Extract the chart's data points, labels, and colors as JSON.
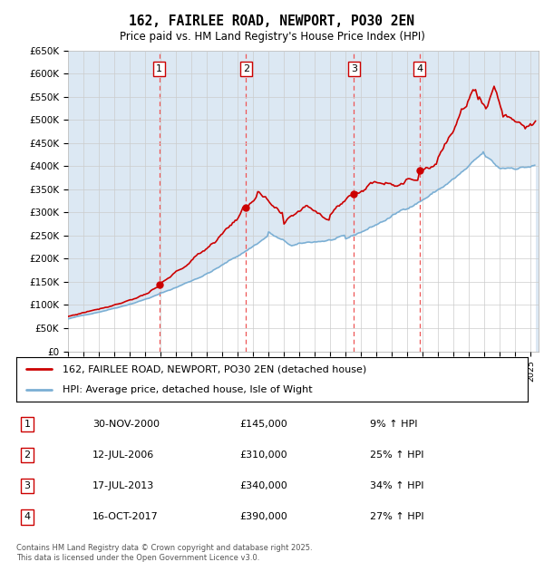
{
  "title": "162, FAIRLEE ROAD, NEWPORT, PO30 2EN",
  "subtitle": "Price paid vs. HM Land Registry's House Price Index (HPI)",
  "ylabel_ticks": [
    "£0",
    "£50K",
    "£100K",
    "£150K",
    "£200K",
    "£250K",
    "£300K",
    "£350K",
    "£400K",
    "£450K",
    "£500K",
    "£550K",
    "£600K",
    "£650K"
  ],
  "ylim": [
    0,
    650000
  ],
  "xlim_start": 1995.0,
  "xlim_end": 2025.5,
  "sale_dates": [
    2000.92,
    2006.53,
    2013.54,
    2017.79
  ],
  "sale_prices": [
    145000,
    310000,
    340000,
    390000
  ],
  "sale_labels": [
    "1",
    "2",
    "3",
    "4"
  ],
  "legend_line1": "162, FAIRLEE ROAD, NEWPORT, PO30 2EN (detached house)",
  "legend_line2": "HPI: Average price, detached house, Isle of Wight",
  "table_rows": [
    [
      "1",
      "30-NOV-2000",
      "£145,000",
      "9% ↑ HPI"
    ],
    [
      "2",
      "12-JUL-2006",
      "£310,000",
      "25% ↑ HPI"
    ],
    [
      "3",
      "17-JUL-2013",
      "£340,000",
      "34% ↑ HPI"
    ],
    [
      "4",
      "16-OCT-2017",
      "£390,000",
      "27% ↑ HPI"
    ]
  ],
  "footnote": "Contains HM Land Registry data © Crown copyright and database right 2025.\nThis data is licensed under the Open Government Licence v3.0.",
  "hpi_color": "#7bafd4",
  "hpi_fill_color": "#dce8f3",
  "price_color": "#cc0000",
  "sale_vline_color": "#ee5555",
  "plot_bg_color": "#ffffff",
  "grid_color": "#cccccc",
  "numbered_box_color": "#cc0000"
}
